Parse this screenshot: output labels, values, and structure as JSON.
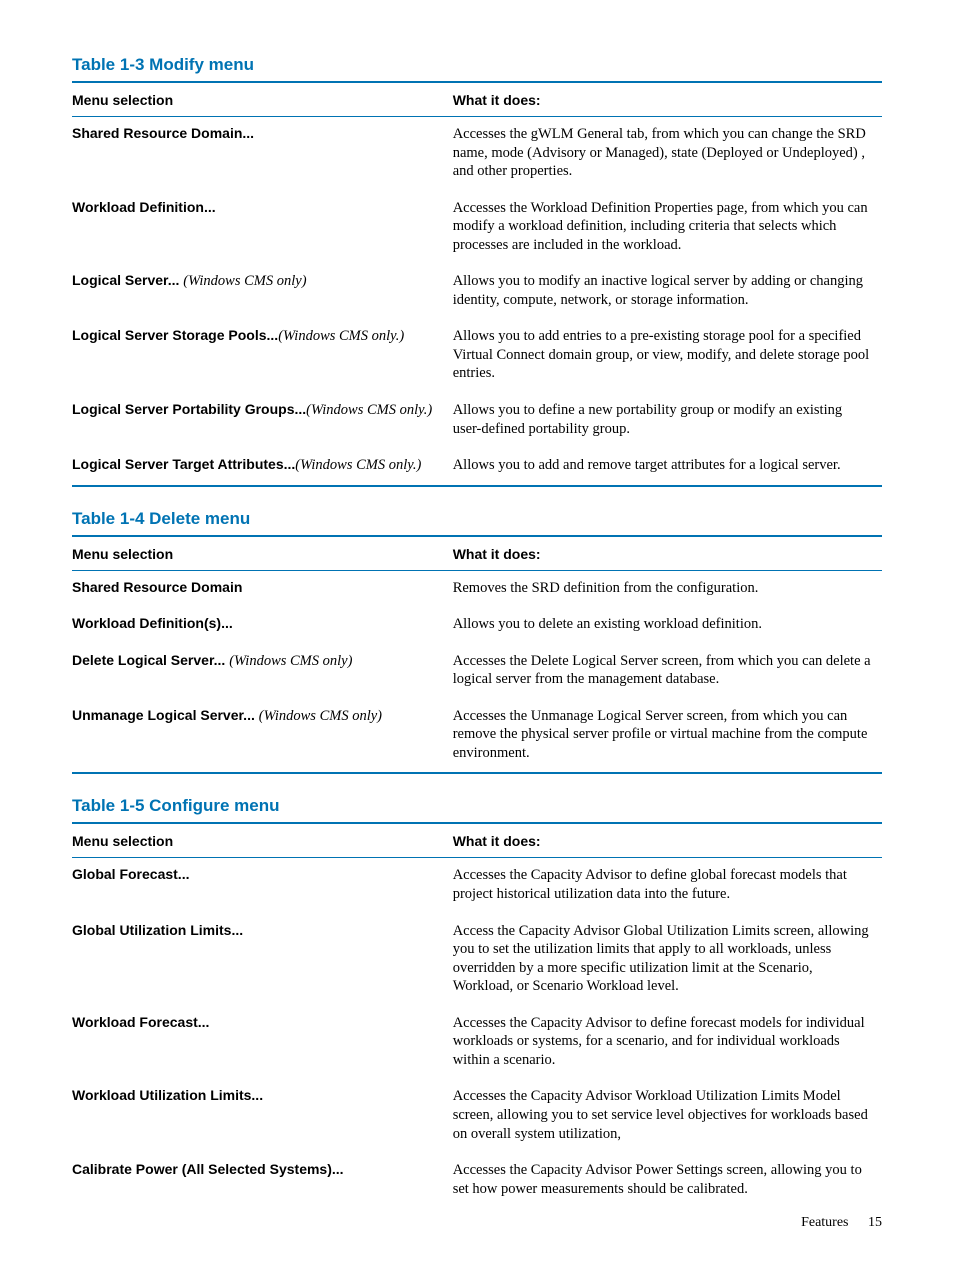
{
  "colors": {
    "accent": "#0073b3",
    "text": "#000000",
    "background": "#ffffff"
  },
  "typography": {
    "heading_font": "Arial",
    "body_font": "Palatino",
    "heading_size_pt": 12,
    "body_size_pt": 11
  },
  "tables": [
    {
      "id": "modify",
      "title": "Table 1-3 Modify menu",
      "header_left": "Menu selection",
      "header_right": "What it does:",
      "rows": [
        {
          "label": "Shared Resource Domain...",
          "note": "",
          "desc": "Accesses the gWLM General tab, from which you can change the SRD name, mode (Advisory or Managed), state (Deployed or Undeployed) , and other properties."
        },
        {
          "label": "Workload Definition...",
          "note": "",
          "desc": "Accesses the Workload Definition Properties page, from which you can modify a workload definition, including criteria that selects which processes are included in the workload."
        },
        {
          "label": "Logical Server... ",
          "note": "(Windows CMS only)",
          "desc": "Allows you to modify an inactive logical server by adding or changing identity, compute, network, or storage information."
        },
        {
          "label": "Logical Server Storage Pools...",
          "note": "(Windows CMS only.)",
          "desc": "Allows you to add entries to a pre-existing storage pool for a specified Virtual Connect domain group, or view, modify, and delete storage pool entries."
        },
        {
          "label": "Logical Server Portability Groups...",
          "note": "(Windows CMS only.)",
          "desc": "Allows you to define a new portability group or modify an existing user-defined portability group."
        },
        {
          "label": "Logical Server Target Attributes...",
          "note": "(Windows CMS only.)",
          "desc": "Allows you to add and remove target attributes for a logical server."
        }
      ]
    },
    {
      "id": "delete",
      "title": "Table 1-4 Delete menu",
      "header_left": "Menu selection",
      "header_right": "What it does:",
      "rows": [
        {
          "label": "Shared Resource Domain",
          "note": "",
          "desc": "Removes the SRD definition from the configuration."
        },
        {
          "label": "Workload Definition(s)...",
          "note": "",
          "desc": "Allows you to delete an existing workload definition."
        },
        {
          "label": "Delete Logical Server...  ",
          "note": "(Windows CMS only)",
          "desc": "Accesses the Delete Logical Server screen, from which you can delete a logical server from the management database."
        },
        {
          "label": "Unmanage Logical Server...  ",
          "note": "(Windows CMS only)",
          "desc": "Accesses the Unmanage Logical Server screen, from which you can remove the physical server profile or virtual machine from the compute environment."
        }
      ]
    },
    {
      "id": "configure",
      "title": "Table 1-5 Configure menu",
      "header_left": "Menu selection",
      "header_right": "What it does:",
      "rows": [
        {
          "label": "Global Forecast...",
          "note": "",
          "desc": "Accesses the Capacity Advisor to define global forecast models that project historical utilization data into the future."
        },
        {
          "label": "Global Utilization Limits...",
          "note": "",
          "desc": "Access the Capacity Advisor Global Utilization Limits screen, allowing you to set the utilization limits that apply to all workloads, unless overridden by a more specific utilization limit at the Scenario, Workload, or Scenario Workload level."
        },
        {
          "label": "Workload Forecast...",
          "note": "",
          "desc": "Accesses the Capacity Advisor to define forecast models for individual workloads or systems, for a scenario, and for individual workloads within a scenario."
        },
        {
          "label": "Workload Utilization Limits...",
          "note": "",
          "desc": "Accesses the Capacity Advisor Workload Utilization Limits Model screen, allowing you to set service level objectives for workloads based on overall system utilization,"
        },
        {
          "label": "Calibrate Power (All Selected Systems)...",
          "note": "",
          "desc": "Accesses the Capacity Advisor Power Settings screen, allowing you to set how power measurements should be calibrated."
        }
      ]
    }
  ],
  "footer": {
    "section": "Features",
    "page": "15"
  }
}
